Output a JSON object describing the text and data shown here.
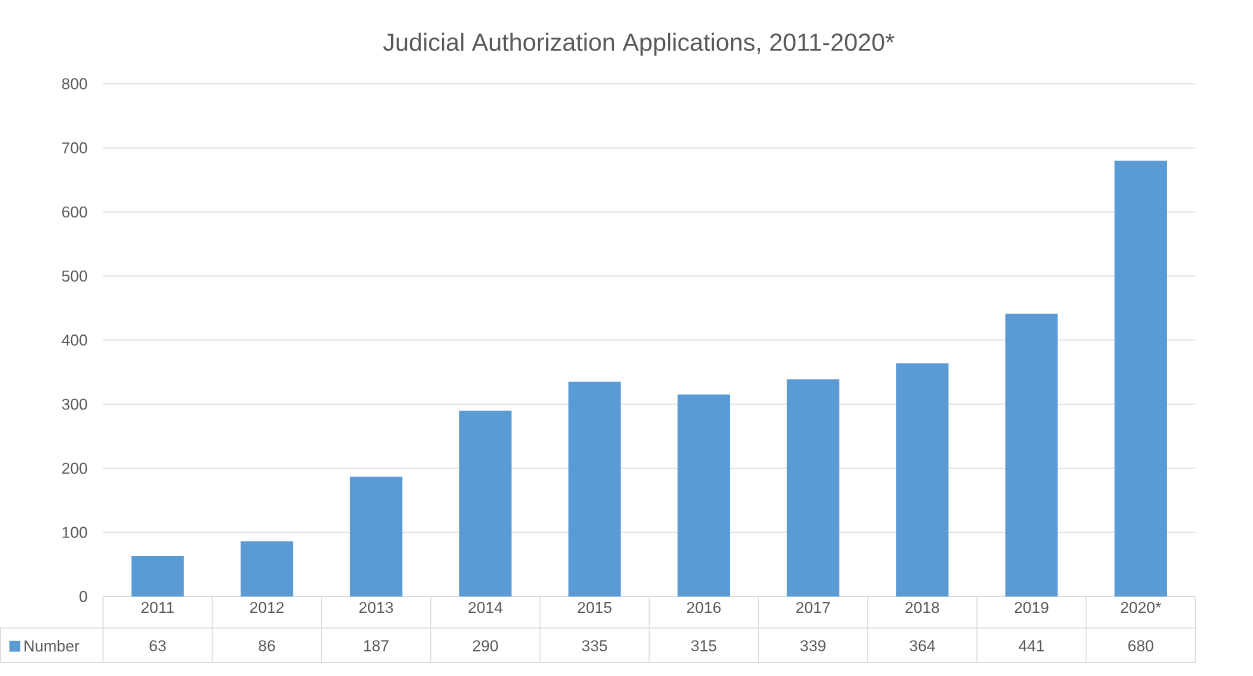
{
  "chart_data": {
    "type": "bar",
    "title": "Judicial Authorization Applications, 2011-2020*",
    "categories": [
      "2011",
      "2012",
      "2013",
      "2014",
      "2015",
      "2016",
      "2017",
      "2018",
      "2019",
      "2020*"
    ],
    "series": [
      {
        "name": "Number",
        "color": "#5b9bd5",
        "values": [
          63,
          86,
          187,
          290,
          335,
          315,
          339,
          364,
          441,
          680
        ]
      }
    ],
    "ylim": [
      0,
      800
    ],
    "yticks": [
      0,
      100,
      200,
      300,
      400,
      500,
      600,
      700,
      800
    ],
    "grid": "y",
    "legend": "bottom",
    "data_labels": true
  }
}
